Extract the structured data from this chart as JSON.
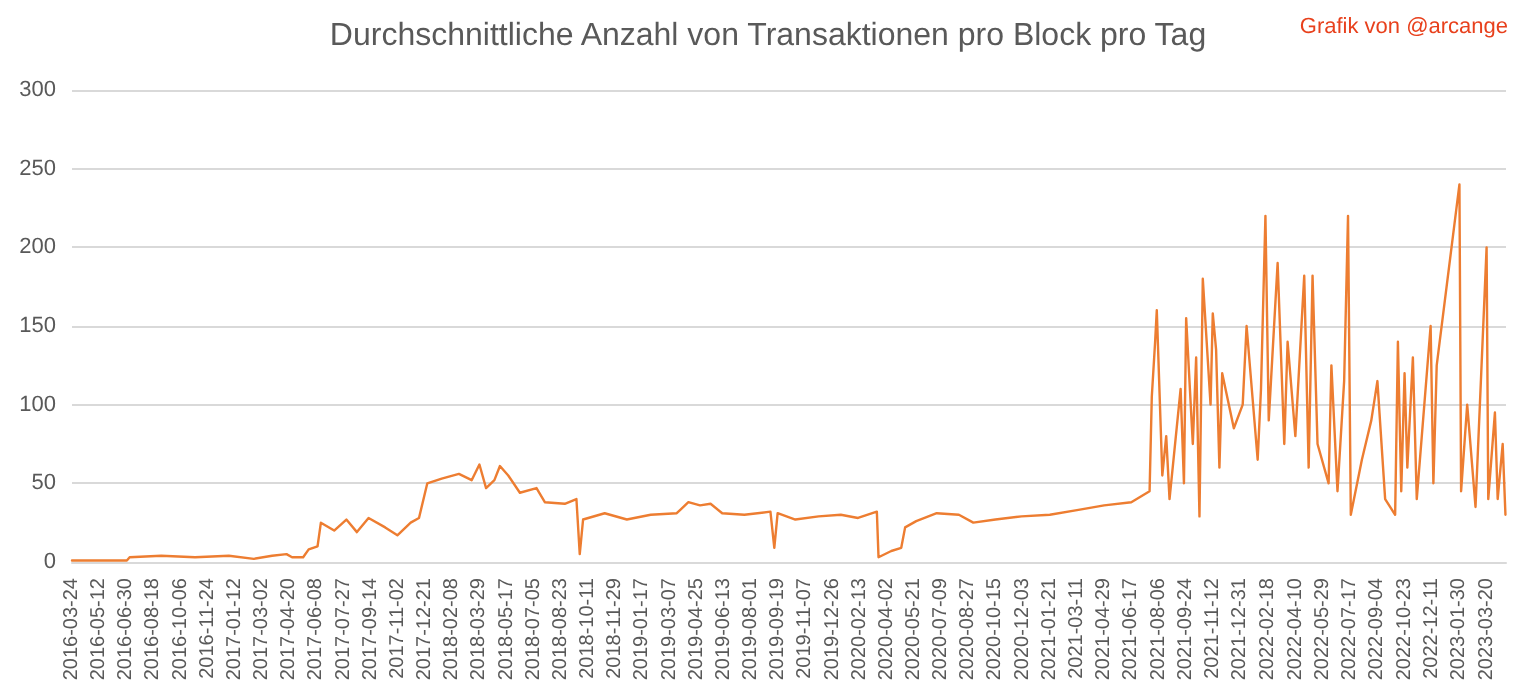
{
  "chart_data": {
    "type": "line",
    "title": "Durchschnittliche Anzahl von Transaktionen pro Block pro Tag",
    "annotations": [
      "Grafik von @arcange"
    ],
    "series": [
      {
        "color": "#ed7d31",
        "x": [
          "2016-03-24",
          "2016-07-01",
          "2016-07-06",
          "2016-09-01",
          "2016-11-01",
          "2017-01-01",
          "2017-02-15",
          "2017-03-20",
          "2017-04-15",
          "2017-04-25",
          "2017-05-15",
          "2017-05-25",
          "2017-06-10",
          "2017-06-16",
          "2017-07-10",
          "2017-08-01",
          "2017-08-20",
          "2017-09-10",
          "2017-10-10",
          "2017-11-01",
          "2017-11-25",
          "2017-12-10",
          "2017-12-25",
          "2018-01-20",
          "2018-02-20",
          "2018-03-15",
          "2018-03-29",
          "2018-04-10",
          "2018-04-25",
          "2018-05-05",
          "2018-05-20",
          "2018-06-10",
          "2018-07-10",
          "2018-07-25",
          "2018-08-30",
          "2018-09-20",
          "2018-09-26",
          "2018-10-02",
          "2018-11-10",
          "2018-12-20",
          "2019-02-01",
          "2019-03-20",
          "2019-04-10",
          "2019-05-01",
          "2019-05-20",
          "2019-06-10",
          "2019-07-20",
          "2019-09-05",
          "2019-09-12",
          "2019-09-18",
          "2019-10-20",
          "2019-12-01",
          "2020-01-10",
          "2020-02-10",
          "2020-03-15",
          "2020-03-18",
          "2020-04-10",
          "2020-04-28",
          "2020-05-05",
          "2020-05-25",
          "2020-07-01",
          "2020-08-10",
          "2020-09-05",
          "2020-10-15",
          "2020-12-01",
          "2021-01-21",
          "2021-03-11",
          "2021-04-29",
          "2021-06-17",
          "2021-07-20",
          "2021-07-24",
          "2021-07-30",
          "2021-08-02",
          "2021-08-12",
          "2021-08-19",
          "2021-08-25",
          "2021-09-14",
          "2021-09-20",
          "2021-09-24",
          "2021-10-06",
          "2021-10-12",
          "2021-10-18",
          "2021-10-24",
          "2021-11-07",
          "2021-11-11",
          "2021-11-17",
          "2021-11-23",
          "2021-11-28",
          "2021-12-19",
          "2022-01-04",
          "2022-01-11",
          "2022-01-31",
          "2022-02-06",
          "2022-02-14",
          "2022-02-20",
          "2022-03-08",
          "2022-03-20",
          "2022-03-26",
          "2022-04-09",
          "2022-04-25",
          "2022-05-03",
          "2022-05-10",
          "2022-05-19",
          "2022-06-08",
          "2022-06-13",
          "2022-06-24",
          "2022-07-06",
          "2022-07-13",
          "2022-07-18",
          "2022-08-07",
          "2022-08-24",
          "2022-09-04",
          "2022-09-18",
          "2022-10-06",
          "2022-10-11",
          "2022-10-17",
          "2022-10-23",
          "2022-10-28",
          "2022-11-07",
          "2022-11-14",
          "2022-12-09",
          "2022-12-14",
          "2022-12-20",
          "2023-01-30",
          "2023-02-02",
          "2023-02-13",
          "2023-02-28",
          "2023-03-20",
          "2023-03-23",
          "2023-04-04",
          "2023-04-09",
          "2023-04-18",
          "2023-04-23"
        ],
        "values": [
          1,
          1,
          3,
          4,
          3,
          4,
          2,
          4,
          5,
          3,
          3,
          8,
          10,
          25,
          20,
          27,
          19,
          28,
          22,
          17,
          25,
          28,
          50,
          53,
          56,
          52,
          62,
          47,
          52,
          61,
          55,
          44,
          47,
          38,
          37,
          40,
          5,
          27,
          31,
          27,
          30,
          31,
          38,
          36,
          37,
          31,
          30,
          32,
          9,
          31,
          27,
          29,
          30,
          28,
          32,
          3,
          7,
          9,
          22,
          26,
          31,
          30,
          25,
          27,
          29,
          30,
          33,
          36,
          38,
          45,
          105,
          140,
          160,
          55,
          80,
          40,
          110,
          50,
          155,
          75,
          130,
          29,
          180,
          100,
          158,
          135,
          60,
          120,
          85,
          100,
          150,
          65,
          110,
          220,
          90,
          190,
          75,
          140,
          80,
          182,
          60,
          182,
          75,
          50,
          125,
          45,
          115,
          220,
          30,
          65,
          90,
          115,
          40,
          30,
          140,
          45,
          120,
          60,
          130,
          40,
          150,
          50,
          125,
          240,
          45,
          100,
          35,
          200,
          40,
          95,
          40,
          75,
          30
        ]
      }
    ],
    "xlim": [
      "2016-03-24",
      "2023-04-24"
    ],
    "xticks": [
      "2016-03-24",
      "2016-05-12",
      "2016-06-30",
      "2016-08-18",
      "2016-10-06",
      "2016-11-24",
      "2017-01-12",
      "2017-03-02",
      "2017-04-20",
      "2017-06-08",
      "2017-07-27",
      "2017-09-14",
      "2017-11-02",
      "2017-12-21",
      "2018-02-08",
      "2018-03-29",
      "2018-05-17",
      "2018-07-05",
      "2018-08-23",
      "2018-10-11",
      "2018-11-29",
      "2019-01-17",
      "2019-03-07",
      "2019-04-25",
      "2019-06-13",
      "2019-08-01",
      "2019-09-19",
      "2019-11-07",
      "2019-12-26",
      "2020-02-13",
      "2020-04-02",
      "2020-05-21",
      "2020-07-09",
      "2020-08-27",
      "2020-10-15",
      "2020-12-03",
      "2021-01-21",
      "2021-03-11",
      "2021-04-29",
      "2021-06-17",
      "2021-08-06",
      "2021-09-24",
      "2021-11-12",
      "2021-12-31",
      "2022-02-18",
      "2022-04-10",
      "2022-05-29",
      "2022-07-17",
      "2022-09-04",
      "2022-10-23",
      "2022-12-11",
      "2023-01-30",
      "2023-03-20"
    ],
    "ylim": [
      0,
      300
    ],
    "yticks": [
      0,
      50,
      100,
      150,
      200,
      250,
      300
    ],
    "grid": "y",
    "marker": "none",
    "line_style": "solid"
  }
}
